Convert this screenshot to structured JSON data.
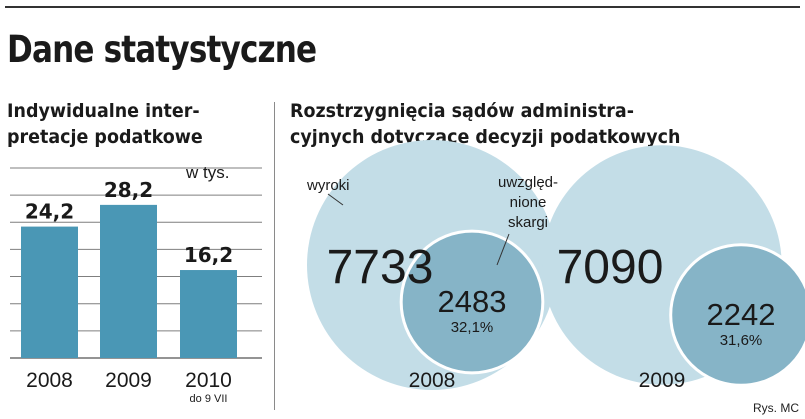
{
  "title": "Dane statystyczne",
  "credit": "Rys. MC",
  "left_panel": {
    "title_line1": "Indywidualne inter-",
    "title_line2": "pretacje podatkowe",
    "unit": "w tys."
  },
  "right_panel": {
    "title_line1": "Rozstrzygnięcia sądów administra-",
    "title_line2": "cyjnych dotyczące decyzji podatkowych",
    "label_large": "wyroki",
    "label_small": [
      "uwzględ-",
      "nione",
      "skargi"
    ]
  },
  "colors": {
    "bar": "#4a97b5",
    "circle_large": "#c3dde7",
    "circle_small": "#86b4c7",
    "grid": "#7f7f7f",
    "text": "#1a1a1a"
  },
  "chart_data": [
    {
      "type": "bar",
      "categories": [
        "2008",
        "2009",
        "2010"
      ],
      "category_notes": [
        "",
        "",
        "do 9 VII"
      ],
      "values": [
        24.2,
        28.2,
        16.2
      ],
      "value_labels": [
        "24,2",
        "28,2",
        "16,2"
      ],
      "ylim": [
        0,
        35
      ],
      "grid": true,
      "unit": "w tys."
    },
    {
      "type": "bubble",
      "groups": [
        {
          "year": "2008",
          "total": 7733,
          "total_label": "7733",
          "upheld": 2483,
          "upheld_label": "2483",
          "share_label": "32,1%",
          "share": 32.1
        },
        {
          "year": "2009",
          "total": 7090,
          "total_label": "7090",
          "upheld": 2242,
          "upheld_label": "2242",
          "share_label": "31,6%",
          "share": 31.6
        }
      ]
    }
  ]
}
